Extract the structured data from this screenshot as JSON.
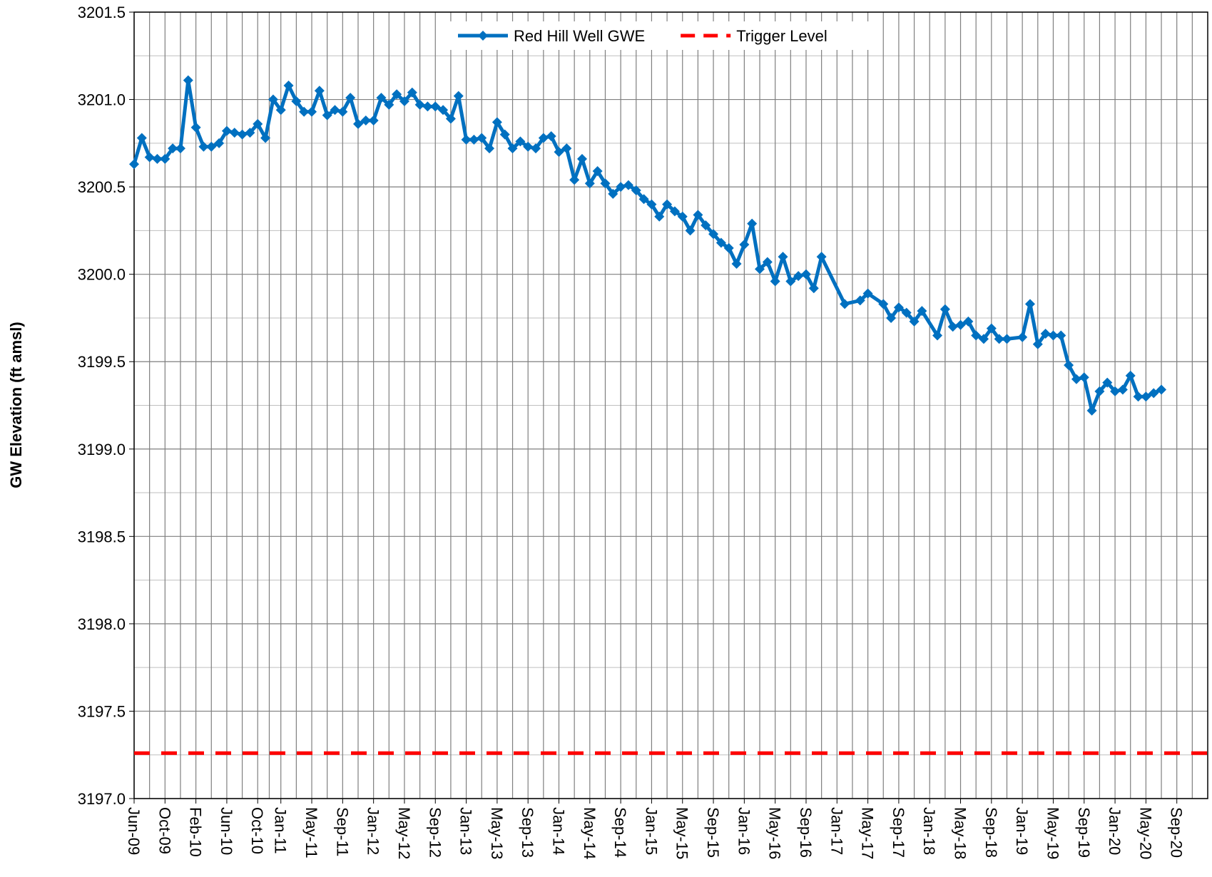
{
  "chart_data": {
    "type": "line",
    "y_label": "GW Elevation (ft amsl)",
    "ylim": [
      3197,
      3201.5
    ],
    "yticks": [
      {
        "value": 3197,
        "label": "3197.0"
      },
      3197.5,
      {
        "value": 3198,
        "label": "3198.0"
      },
      3198.5,
      {
        "value": 3199,
        "label": "3199.0"
      },
      3199.5,
      {
        "value": 3200,
        "label": "3200.0"
      },
      3200.5,
      {
        "value": 3201,
        "label": "3201.0"
      },
      3201.5
    ],
    "xlim": [
      "2009-06",
      "2021-01"
    ],
    "xticks": [
      {
        "value": "2009-06",
        "label": "Jun-09"
      },
      {
        "value": "2009-10",
        "label": "Oct-09"
      },
      {
        "value": "2010-02",
        "label": "Feb-10"
      },
      {
        "value": "2010-06",
        "label": "Jun-10"
      },
      {
        "value": "2010-10",
        "label": "Oct-10"
      },
      {
        "value": "2011-01",
        "label": "Jan-11"
      },
      {
        "value": "2011-05",
        "label": "May-11"
      },
      {
        "value": "2011-09",
        "label": "Sep-11"
      },
      {
        "value": "2012-01",
        "label": "Jan-12"
      },
      {
        "value": "2012-05",
        "label": "May-12"
      },
      {
        "value": "2012-09",
        "label": "Sep-12"
      },
      {
        "value": "2013-01",
        "label": "Jan-13"
      },
      {
        "value": "2013-05",
        "label": "May-13"
      },
      {
        "value": "2013-09",
        "label": "Sep-13"
      },
      {
        "value": "2014-01",
        "label": "Jan-14"
      },
      {
        "value": "2014-05",
        "label": "May-14"
      },
      {
        "value": "2014-09",
        "label": "Sep-14"
      },
      {
        "value": "2015-01",
        "label": "Jan-15"
      },
      {
        "value": "2015-05",
        "label": "May-15"
      },
      {
        "value": "2015-09",
        "label": "Sep-15"
      },
      {
        "value": "2016-01",
        "label": "Jan-16"
      },
      {
        "value": "2016-05",
        "label": "May-16"
      },
      {
        "value": "2016-09",
        "label": "Sep-16"
      },
      {
        "value": "2017-01",
        "label": "Jan-17"
      },
      {
        "value": "2017-05",
        "label": "May-17"
      },
      {
        "value": "2017-09",
        "label": "Sep-17"
      },
      {
        "value": "2018-01",
        "label": "Jan-18"
      },
      {
        "value": "2018-05",
        "label": "May-18"
      },
      {
        "value": "2018-09",
        "label": "Sep-18"
      },
      {
        "value": "2019-01",
        "label": "Jan-19"
      },
      {
        "value": "2019-05",
        "label": "May-19"
      },
      {
        "value": "2019-09",
        "label": "Sep-19"
      },
      {
        "value": "2020-01",
        "label": "Jan-20"
      },
      {
        "value": "2020-05",
        "label": "May-20"
      },
      {
        "value": "2020-09",
        "label": "Sep-20"
      }
    ],
    "grid": true,
    "legend": "top",
    "series": [
      {
        "name": "Red Hill Well GWE",
        "color": "#0070C0",
        "marker": "diamond",
        "x": [
          "2009-06",
          "2009-07",
          "2009-08",
          "2009-09",
          "2009-10",
          "2009-11",
          "2009-12",
          "2010-01",
          "2010-02",
          "2010-03",
          "2010-04",
          "2010-05",
          "2010-06",
          "2010-07",
          "2010-08",
          "2010-09",
          "2010-10",
          "2010-11",
          "2010-12",
          "2011-01",
          "2011-02",
          "2011-03",
          "2011-04",
          "2011-05",
          "2011-06",
          "2011-07",
          "2011-08",
          "2011-09",
          "2011-10",
          "2011-11",
          "2011-12",
          "2012-01",
          "2012-02",
          "2012-03",
          "2012-04",
          "2012-05",
          "2012-06",
          "2012-07",
          "2012-08",
          "2012-09",
          "2012-10",
          "2012-11",
          "2012-12",
          "2013-01",
          "2013-02",
          "2013-03",
          "2013-04",
          "2013-05",
          "2013-06",
          "2013-07",
          "2013-08",
          "2013-09",
          "2013-10",
          "2013-11",
          "2013-12",
          "2014-01",
          "2014-02",
          "2014-03",
          "2014-04",
          "2014-05",
          "2014-06",
          "2014-07",
          "2014-08",
          "2014-09",
          "2014-10",
          "2014-11",
          "2014-12",
          "2015-01",
          "2015-02",
          "2015-03",
          "2015-04",
          "2015-05",
          "2015-06",
          "2015-07",
          "2015-08",
          "2015-09",
          "2015-10",
          "2015-11",
          "2015-12",
          "2016-01",
          "2016-02",
          "2016-03",
          "2016-04",
          "2016-05",
          "2016-06",
          "2016-07",
          "2016-08",
          "2016-09",
          "2016-10",
          "2016-11",
          "2017-02",
          "2017-04",
          "2017-05",
          "2017-07",
          "2017-08",
          "2017-09",
          "2017-10",
          "2017-11",
          "2017-12",
          "2018-02",
          "2018-03",
          "2018-04",
          "2018-05",
          "2018-06",
          "2018-07",
          "2018-08",
          "2018-09",
          "2018-10",
          "2018-11",
          "2019-01",
          "2019-02",
          "2019-03",
          "2019-04",
          "2019-05",
          "2019-06",
          "2019-07",
          "2019-08",
          "2019-09",
          "2019-10",
          "2019-11",
          "2019-12",
          "2020-01",
          "2020-02",
          "2020-03",
          "2020-04",
          "2020-05",
          "2020-06",
          "2020-07"
        ],
        "values": [
          3200.63,
          3200.78,
          3200.67,
          3200.66,
          3200.66,
          3200.72,
          3200.72,
          3201.11,
          3200.84,
          3200.73,
          3200.73,
          3200.75,
          3200.82,
          3200.81,
          3200.8,
          3200.81,
          3200.86,
          3200.78,
          3201.0,
          3200.94,
          3201.08,
          3200.99,
          3200.93,
          3200.93,
          3201.05,
          3200.91,
          3200.94,
          3200.93,
          3201.01,
          3200.86,
          3200.88,
          3200.88,
          3201.01,
          3200.97,
          3201.03,
          3200.99,
          3201.04,
          3200.97,
          3200.96,
          3200.96,
          3200.94,
          3200.89,
          3201.02,
          3200.77,
          3200.77,
          3200.78,
          3200.72,
          3200.87,
          3200.8,
          3200.72,
          3200.76,
          3200.73,
          3200.72,
          3200.78,
          3200.79,
          3200.7,
          3200.72,
          3200.54,
          3200.66,
          3200.52,
          3200.59,
          3200.52,
          3200.46,
          3200.5,
          3200.51,
          3200.48,
          3200.43,
          3200.4,
          3200.33,
          3200.4,
          3200.36,
          3200.33,
          3200.25,
          3200.34,
          3200.28,
          3200.23,
          3200.18,
          3200.15,
          3200.06,
          3200.17,
          3200.29,
          3200.03,
          3200.07,
          3199.96,
          3200.1,
          3199.96,
          3199.99,
          3200.0,
          3199.92,
          3200.1,
          3199.83,
          3199.85,
          3199.89,
          3199.83,
          3199.75,
          3199.81,
          3199.78,
          3199.73,
          3199.79,
          3199.65,
          3199.8,
          3199.7,
          3199.71,
          3199.73,
          3199.65,
          3199.63,
          3199.69,
          3199.63,
          3199.63,
          3199.64,
          3199.83,
          3199.6,
          3199.66,
          3199.65,
          3199.65,
          3199.48,
          3199.4,
          3199.41,
          3199.22,
          3199.33,
          3199.38,
          3199.33,
          3199.34,
          3199.42,
          3199.3,
          3199.3,
          3199.32,
          3199.34
        ]
      },
      {
        "name": "Trigger Level",
        "color": "#FF0000",
        "dashed": true,
        "x": [
          "2009-06",
          "2021-01"
        ],
        "values": [
          3197.26,
          3197.26
        ]
      }
    ]
  }
}
